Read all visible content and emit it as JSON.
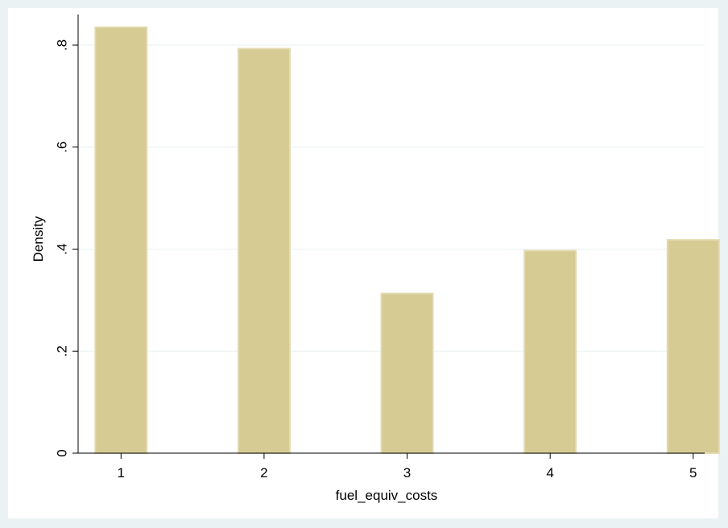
{
  "chart_data": {
    "type": "bar",
    "title": "",
    "xlabel": "fuel_equiv_costs",
    "ylabel": "Density",
    "x": [
      1,
      2,
      3,
      4,
      5
    ],
    "values": [
      0.835,
      0.793,
      0.313,
      0.397,
      0.418
    ],
    "xticks": [
      1,
      2,
      3,
      4,
      5
    ],
    "xtick_labels": [
      "1",
      "2",
      "3",
      "4",
      "5"
    ],
    "yticks": [
      0,
      0.2,
      0.4,
      0.6,
      0.8
    ],
    "ytick_labels": [
      "0",
      ".2",
      ".4",
      ".6",
      ".8"
    ],
    "ylim": [
      0,
      0.86
    ],
    "xlim": [
      0.7,
      5.08
    ],
    "grid": true,
    "colors": {
      "outer_background": "#eaf2f3",
      "plot_background": "#ffffff",
      "bar_fill": "#d5cb93",
      "bar_edge": "#e2dab0",
      "gridline": "#eaf2f3",
      "axis": "#000000"
    }
  }
}
